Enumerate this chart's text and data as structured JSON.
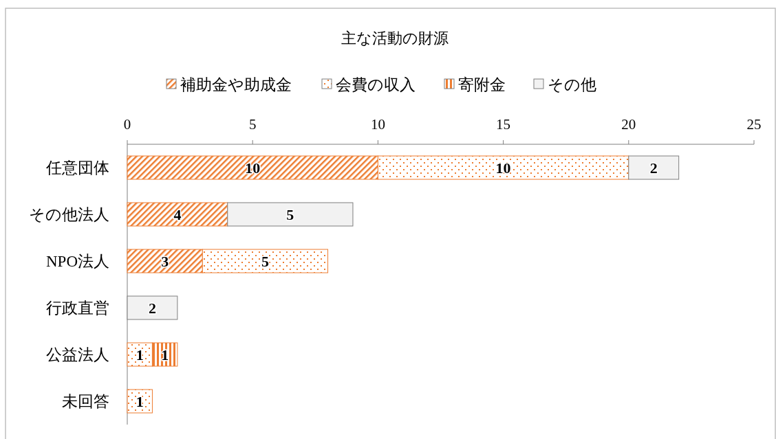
{
  "chart_data": {
    "type": "bar",
    "orientation": "horizontal",
    "stacked": true,
    "title": "主な活動の財源",
    "categories": [
      "任意団体",
      "その他法人",
      "NPO法人",
      "行政直営",
      "公益法人",
      "未回答"
    ],
    "series": [
      {
        "name": "補助金や助成金",
        "color": "#ed7d31",
        "values": [
          10,
          4,
          3,
          null,
          null,
          null
        ]
      },
      {
        "name": "会費の収入",
        "color": "#ed7d31",
        "values": [
          10,
          null,
          5,
          null,
          1,
          1
        ]
      },
      {
        "name": "寄附金",
        "color": "#ed7d31",
        "values": [
          null,
          null,
          null,
          null,
          1,
          null
        ]
      },
      {
        "name": "その他",
        "color": "#f2f2f2",
        "values": [
          2,
          5,
          null,
          2,
          null,
          null
        ]
      }
    ],
    "xlim": [
      0,
      25
    ],
    "xticks": [
      0,
      5,
      10,
      15,
      20,
      25
    ],
    "legend": "top",
    "data_labels": true
  }
}
